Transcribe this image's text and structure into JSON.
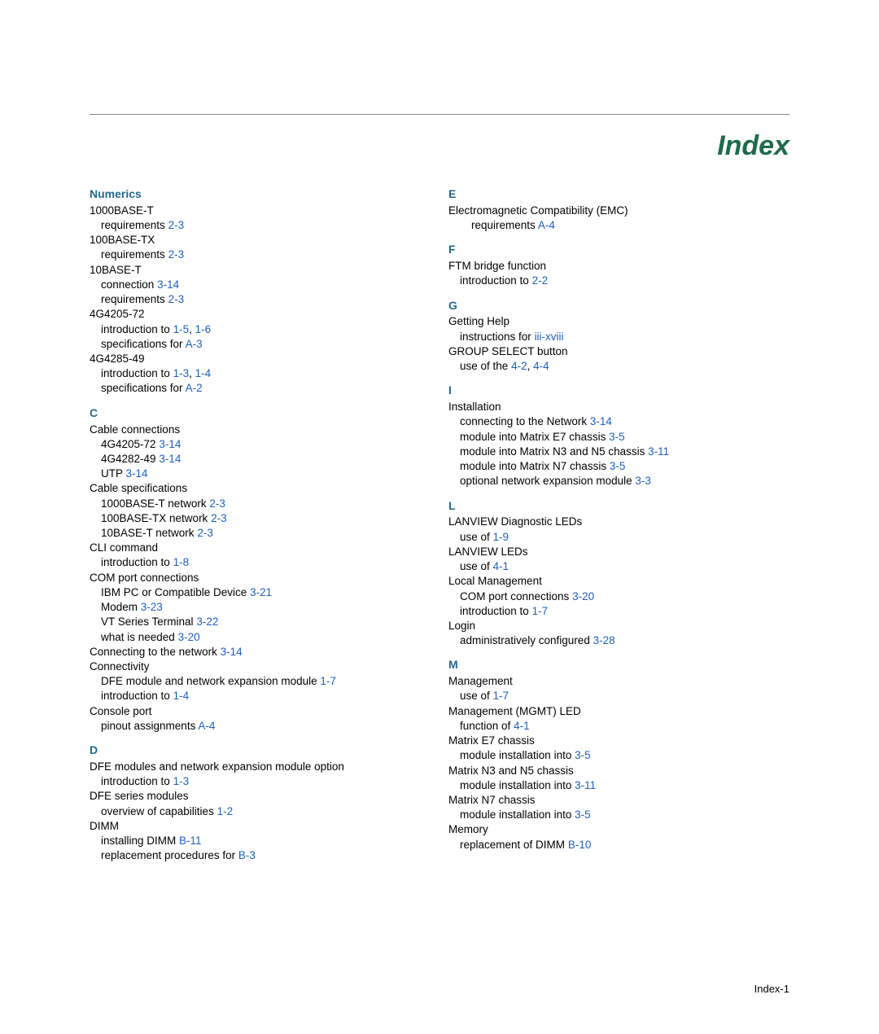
{
  "title": "Index",
  "footer": "Index-1",
  "colors": {
    "heading": "#1f6a4a",
    "section": "#1f6a8f",
    "link": "#1f5fbf",
    "rule": "#888888",
    "text": "#000000",
    "background": "#ffffff"
  },
  "left": [
    {
      "type": "head",
      "text": "Numerics"
    },
    {
      "type": "entry",
      "level": 0,
      "text": "1000BASE-T"
    },
    {
      "type": "entry",
      "level": 1,
      "text": "requirements",
      "refs": [
        "2-3"
      ]
    },
    {
      "type": "entry",
      "level": 0,
      "text": "100BASE-TX"
    },
    {
      "type": "entry",
      "level": 1,
      "text": "requirements",
      "refs": [
        "2-3"
      ]
    },
    {
      "type": "entry",
      "level": 0,
      "text": "10BASE-T"
    },
    {
      "type": "entry",
      "level": 1,
      "text": "connection",
      "refs": [
        "3-14"
      ]
    },
    {
      "type": "entry",
      "level": 1,
      "text": "requirements",
      "refs": [
        "2-3"
      ]
    },
    {
      "type": "entry",
      "level": 0,
      "text": "4G4205-72"
    },
    {
      "type": "entry",
      "level": 1,
      "text": "introduction to",
      "refs": [
        "1-5",
        "1-6"
      ]
    },
    {
      "type": "entry",
      "level": 1,
      "text": "specifications for",
      "refs": [
        "A-3"
      ]
    },
    {
      "type": "entry",
      "level": 0,
      "text": "4G4285-49"
    },
    {
      "type": "entry",
      "level": 1,
      "text": "introduction to",
      "refs": [
        "1-3",
        "1-4"
      ]
    },
    {
      "type": "entry",
      "level": 1,
      "text": "specifications for",
      "refs": [
        "A-2"
      ]
    },
    {
      "type": "head",
      "text": "C"
    },
    {
      "type": "entry",
      "level": 0,
      "text": "Cable connections"
    },
    {
      "type": "entry",
      "level": 1,
      "text": "4G4205-72",
      "refs": [
        "3-14"
      ]
    },
    {
      "type": "entry",
      "level": 1,
      "text": "4G4282-49",
      "refs": [
        "3-14"
      ]
    },
    {
      "type": "entry",
      "level": 1,
      "text": "UTP",
      "refs": [
        "3-14"
      ]
    },
    {
      "type": "entry",
      "level": 0,
      "text": "Cable specifications"
    },
    {
      "type": "entry",
      "level": 1,
      "text": "1000BASE-T network",
      "refs": [
        "2-3"
      ]
    },
    {
      "type": "entry",
      "level": 1,
      "text": "100BASE-TX network",
      "refs": [
        "2-3"
      ]
    },
    {
      "type": "entry",
      "level": 1,
      "text": "10BASE-T network",
      "refs": [
        "2-3"
      ]
    },
    {
      "type": "entry",
      "level": 0,
      "text": "CLI command"
    },
    {
      "type": "entry",
      "level": 1,
      "text": "introduction to",
      "refs": [
        "1-8"
      ]
    },
    {
      "type": "entry",
      "level": 0,
      "text": "COM port connections"
    },
    {
      "type": "entry",
      "level": 1,
      "text": "IBM PC or Compatible Device",
      "refs": [
        "3-21"
      ]
    },
    {
      "type": "entry",
      "level": 1,
      "text": "Modem",
      "refs": [
        "3-23"
      ]
    },
    {
      "type": "entry",
      "level": 1,
      "text": "VT Series Terminal",
      "refs": [
        "3-22"
      ]
    },
    {
      "type": "entry",
      "level": 1,
      "text": "what is needed",
      "refs": [
        "3-20"
      ]
    },
    {
      "type": "entry",
      "level": 0,
      "text": "Connecting to the network",
      "refs": [
        "3-14"
      ]
    },
    {
      "type": "entry",
      "level": 0,
      "text": "Connectivity"
    },
    {
      "type": "entry",
      "level": 1,
      "text": "DFE module and network expansion module",
      "refs": [
        "1-7"
      ]
    },
    {
      "type": "entry",
      "level": 1,
      "text": "introduction to",
      "refs": [
        "1-4"
      ]
    },
    {
      "type": "entry",
      "level": 0,
      "text": "Console port"
    },
    {
      "type": "entry",
      "level": 1,
      "text": "pinout assignments",
      "refs": [
        "A-4"
      ]
    },
    {
      "type": "head",
      "text": "D"
    },
    {
      "type": "entry",
      "level": 0,
      "text": "DFE modules and network expansion module option"
    },
    {
      "type": "entry",
      "level": 1,
      "text": "introduction to",
      "refs": [
        "1-3"
      ]
    },
    {
      "type": "entry",
      "level": 0,
      "text": "DFE series modules"
    },
    {
      "type": "entry",
      "level": 1,
      "text": "overview of capabilities",
      "refs": [
        "1-2"
      ]
    },
    {
      "type": "entry",
      "level": 0,
      "text": "DIMM"
    },
    {
      "type": "entry",
      "level": 1,
      "text": "installing DIMM",
      "refs": [
        "B-11"
      ]
    },
    {
      "type": "entry",
      "level": 1,
      "text": "replacement procedures for",
      "refs": [
        "B-3"
      ]
    }
  ],
  "right": [
    {
      "type": "head",
      "text": "E"
    },
    {
      "type": "entry",
      "level": 0,
      "text": "Electromagnetic Compatibility (EMC)"
    },
    {
      "type": "entry",
      "level": 2,
      "text": "requirements",
      "refs": [
        "A-4"
      ]
    },
    {
      "type": "head",
      "text": "F"
    },
    {
      "type": "entry",
      "level": 0,
      "text": "FTM bridge function"
    },
    {
      "type": "entry",
      "level": 1,
      "text": "introduction to",
      "refs": [
        "2-2"
      ]
    },
    {
      "type": "head",
      "text": "G"
    },
    {
      "type": "entry",
      "level": 0,
      "text": "Getting Help"
    },
    {
      "type": "entry",
      "level": 1,
      "text": "instructions for",
      "refs": [
        "iii-xviii"
      ]
    },
    {
      "type": "entry",
      "level": 0,
      "text": "GROUP SELECT button"
    },
    {
      "type": "entry",
      "level": 1,
      "text": "use of the",
      "refs": [
        "4-2",
        "4-4"
      ]
    },
    {
      "type": "head",
      "text": "I"
    },
    {
      "type": "entry",
      "level": 0,
      "text": "Installation"
    },
    {
      "type": "entry",
      "level": 1,
      "text": "connecting to the Network",
      "refs": [
        "3-14"
      ]
    },
    {
      "type": "entry",
      "level": 1,
      "text": "module into Matrix E7 chassis",
      "refs": [
        "3-5"
      ]
    },
    {
      "type": "entry",
      "level": 1,
      "text": "module into Matrix N3 and N5 chassis",
      "refs": [
        "3-11"
      ]
    },
    {
      "type": "entry",
      "level": 1,
      "text": "module into Matrix N7 chassis",
      "refs": [
        "3-5"
      ]
    },
    {
      "type": "entry",
      "level": 1,
      "text": "optional network expansion module",
      "refs": [
        "3-3"
      ]
    },
    {
      "type": "head",
      "text": "L"
    },
    {
      "type": "entry",
      "level": 0,
      "text": "LANVIEW Diagnostic LEDs"
    },
    {
      "type": "entry",
      "level": 1,
      "text": "use of",
      "refs": [
        "1-9"
      ]
    },
    {
      "type": "entry",
      "level": 0,
      "text": "LANVIEW LEDs"
    },
    {
      "type": "entry",
      "level": 1,
      "text": "use of",
      "refs": [
        "4-1"
      ]
    },
    {
      "type": "entry",
      "level": 0,
      "text": "Local Management"
    },
    {
      "type": "entry",
      "level": 1,
      "text": "COM port connections",
      "refs": [
        "3-20"
      ]
    },
    {
      "type": "entry",
      "level": 1,
      "text": "introduction to",
      "refs": [
        "1-7"
      ]
    },
    {
      "type": "entry",
      "level": 0,
      "text": "Login"
    },
    {
      "type": "entry",
      "level": 1,
      "text": "administratively configured",
      "refs": [
        "3-28"
      ]
    },
    {
      "type": "head",
      "text": "M"
    },
    {
      "type": "entry",
      "level": 0,
      "text": "Management"
    },
    {
      "type": "entry",
      "level": 1,
      "text": "use of",
      "refs": [
        "1-7"
      ]
    },
    {
      "type": "entry",
      "level": 0,
      "text": "Management (MGMT) LED"
    },
    {
      "type": "entry",
      "level": 1,
      "text": "function of",
      "refs": [
        "4-1"
      ]
    },
    {
      "type": "entry",
      "level": 0,
      "text": "Matrix E7 chassis"
    },
    {
      "type": "entry",
      "level": 1,
      "text": "module installation into",
      "refs": [
        "3-5"
      ]
    },
    {
      "type": "entry",
      "level": 0,
      "text": "Matrix N3 and N5 chassis"
    },
    {
      "type": "entry",
      "level": 1,
      "text": "module installation into",
      "refs": [
        "3-11"
      ]
    },
    {
      "type": "entry",
      "level": 0,
      "text": "Matrix N7 chassis"
    },
    {
      "type": "entry",
      "level": 1,
      "text": "module installation into",
      "refs": [
        "3-5"
      ]
    },
    {
      "type": "entry",
      "level": 0,
      "text": "Memory"
    },
    {
      "type": "entry",
      "level": 1,
      "text": "replacement of DIMM",
      "refs": [
        "B-10"
      ]
    }
  ]
}
